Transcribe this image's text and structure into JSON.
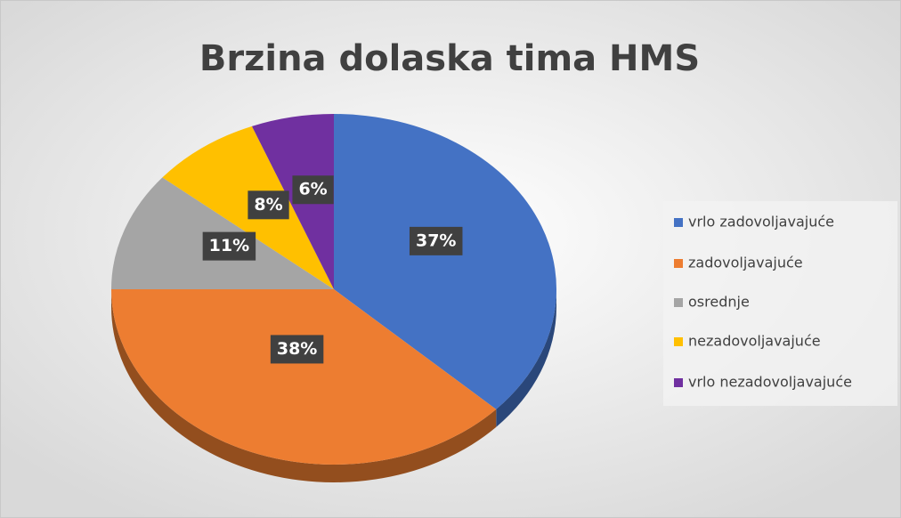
{
  "chart_data": {
    "type": "pie",
    "title": "Brzina dolaska tima HMS",
    "categories": [
      "vrlo zadovoljavajuće",
      "zadovoljavajuće",
      "osrednje",
      "nezadovoljavajuće",
      "vrlo nezadovoljavajuće"
    ],
    "values": [
      37,
      38,
      11,
      8,
      6
    ],
    "value_labels": [
      "37%",
      "38%",
      "11%",
      "8%",
      "6%"
    ],
    "colors": [
      "#4472c4",
      "#ed7d31",
      "#a5a5a5",
      "#ffc000",
      "#7030a0"
    ],
    "legend": "right"
  }
}
